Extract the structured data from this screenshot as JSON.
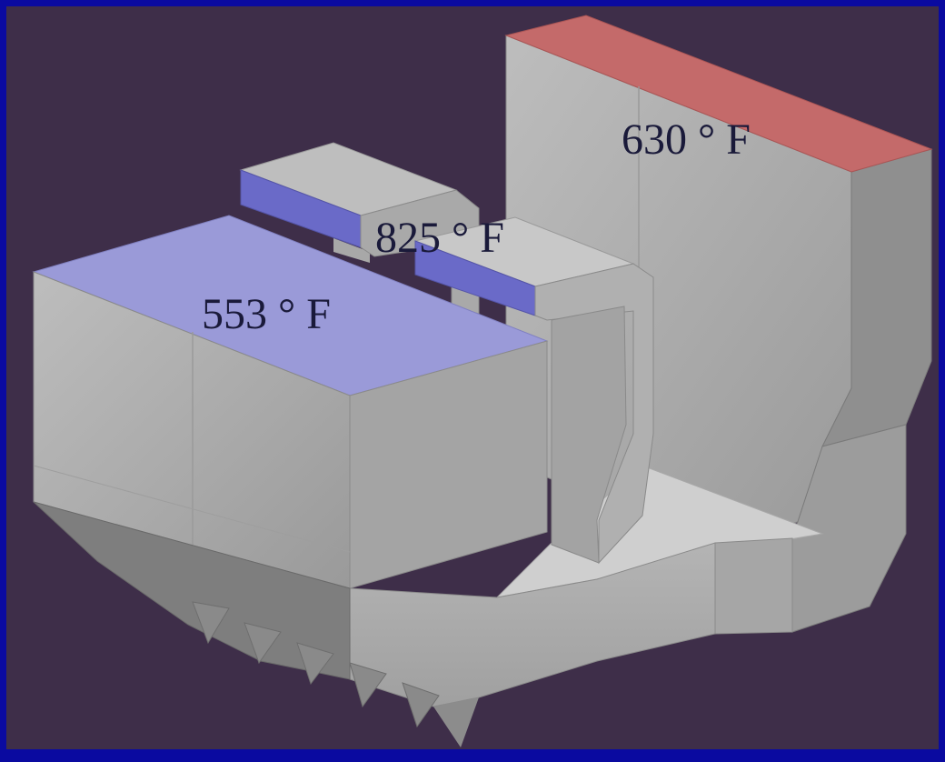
{
  "labels": {
    "boiler_temp": "630 ° F",
    "duct_temp": "825 ° F",
    "precipitator_temp": "553 ° F"
  },
  "colors": {
    "background": "#3e2e49",
    "border": "#0a0aa0",
    "hot_face": "#c46a6a",
    "cool_face": "#9a9ad8",
    "duct_face": "#6a6ac8"
  }
}
